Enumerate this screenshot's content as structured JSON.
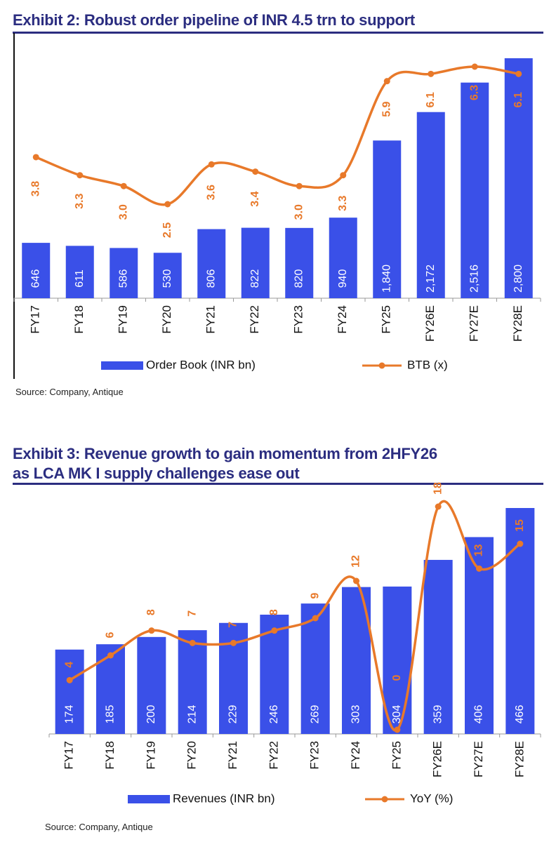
{
  "colors": {
    "bar": "#3a50e8",
    "line": "#e8792a",
    "title": "#2b2d80"
  },
  "chart_data": [
    {
      "type": "bar",
      "title": "Exhibit 2: Robust order pipeline of INR 4.5 trn to support",
      "categories": [
        "FY17",
        "FY18",
        "FY19",
        "FY20",
        "FY21",
        "FY22",
        "FY23",
        "FY24",
        "FY25",
        "FY26E",
        "FY27E",
        "FY28E"
      ],
      "series": [
        {
          "name": "Order Book (INR bn)",
          "kind": "bar",
          "values": [
            646,
            611,
            586,
            530,
            806,
            822,
            820,
            940,
            1840,
            2172,
            2516,
            2800
          ],
          "labels": [
            "646",
            "611",
            "586",
            "530",
            "806",
            "822",
            "820",
            "940",
            "1,840",
            "2,172",
            "2,516",
            "2,800"
          ]
        },
        {
          "name": "BTB (x)",
          "kind": "line",
          "values": [
            3.8,
            3.3,
            3.0,
            2.5,
            3.6,
            3.4,
            3.0,
            3.3,
            5.9,
            6.1,
            6.3,
            6.1
          ],
          "labels": [
            "3.8",
            "3.3",
            "3.0",
            "2.5",
            "3.6",
            "3.4",
            "3.0",
            "3.3",
            "5.9",
            "6.1",
            "6.3",
            "6.1"
          ]
        }
      ],
      "legend": [
        "Order Book (INR bn)",
        "BTB (x)"
      ],
      "source": "Source: Company, Antique"
    },
    {
      "type": "bar",
      "title": "Exhibit 3: Revenue growth to gain momentum from 2HFY26 as LCA MK I supply challenges ease out",
      "title_lines": [
        "Exhibit 3: Revenue growth to gain momentum from 2HFY26",
        "as LCA MK I supply challenges ease out"
      ],
      "categories": [
        "FY17",
        "FY18",
        "FY19",
        "FY20",
        "FY21",
        "FY22",
        "FY23",
        "FY24",
        "FY25",
        "FY26E",
        "FY27E",
        "FY28E"
      ],
      "series": [
        {
          "name": "Revenues (INR bn)",
          "kind": "bar",
          "values": [
            174,
            185,
            200,
            214,
            229,
            246,
            269,
            303,
            304,
            359,
            406,
            466
          ],
          "labels": [
            "174",
            "185",
            "200",
            "214",
            "229",
            "246",
            "269",
            "303",
            "304",
            "359",
            "406",
            "466"
          ]
        },
        {
          "name": "YoY (%)",
          "kind": "line",
          "values": [
            4,
            6,
            8,
            7,
            7,
            8,
            9,
            12,
            0,
            18,
            13,
            15
          ],
          "labels": [
            "4",
            "6",
            "8",
            "7",
            "7",
            "8",
            "9",
            "12",
            "0",
            "18",
            "13",
            "15"
          ]
        }
      ],
      "legend": [
        "Revenues (INR bn)",
        "YoY (%)"
      ],
      "source": "Source: Company, Antique"
    }
  ]
}
